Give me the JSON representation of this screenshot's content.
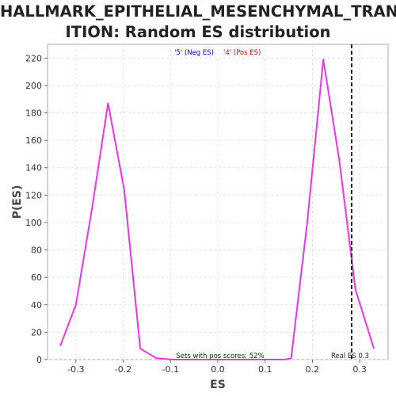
{
  "chart_data": {
    "type": "line",
    "title_lines": [
      "HALLMARK_EPITHELIAL_MESENCHYMAL_TRANS",
      "ITION: Random ES distribution"
    ],
    "xlabel": "ES",
    "ylabel": "P(ES)",
    "xlim": [
      -0.36,
      0.36
    ],
    "ylim": [
      0,
      230
    ],
    "x_ticks": [
      -0.3,
      -0.2,
      -0.1,
      0.0,
      0.1,
      0.2,
      0.3
    ],
    "x_tick_labels": [
      "-0.3",
      "-0.2",
      "-0.1",
      "0.0",
      "0.1",
      "0.2",
      "0.3"
    ],
    "y_ticks": [
      0,
      20,
      40,
      60,
      80,
      100,
      120,
      140,
      160,
      180,
      200,
      220
    ],
    "y_tick_labels": [
      "0",
      "20",
      "40",
      "60",
      "80",
      "100",
      "120",
      "140",
      "160",
      "180",
      "200",
      "220"
    ],
    "grid": true,
    "legend": [
      {
        "label": "'5' (Neg ES)",
        "color": "#0000ee"
      },
      {
        "label": "'4' (Pos ES)",
        "color": "#ee0000"
      }
    ],
    "legend_placement": "top-center",
    "series": [
      {
        "color": "#ee33ee",
        "x": [
          -0.333,
          -0.3,
          -0.266,
          -0.232,
          -0.198,
          -0.164,
          -0.13,
          -0.096,
          -0.062,
          -0.028,
          0.006,
          0.04,
          0.074,
          0.108,
          0.142,
          0.155,
          0.189,
          0.223,
          0.257,
          0.291,
          0.33
        ],
        "y": [
          10,
          40,
          110,
          187,
          124,
          8,
          1,
          0,
          0,
          0,
          0,
          0,
          0,
          0,
          0,
          1,
          100,
          219,
          145,
          51,
          8
        ]
      }
    ],
    "reference_line": {
      "x": 0.283,
      "label": "Real ES 0.3",
      "style": "dashed",
      "color": "#222222"
    },
    "annotation": "Sets with pos scores: 52%"
  }
}
